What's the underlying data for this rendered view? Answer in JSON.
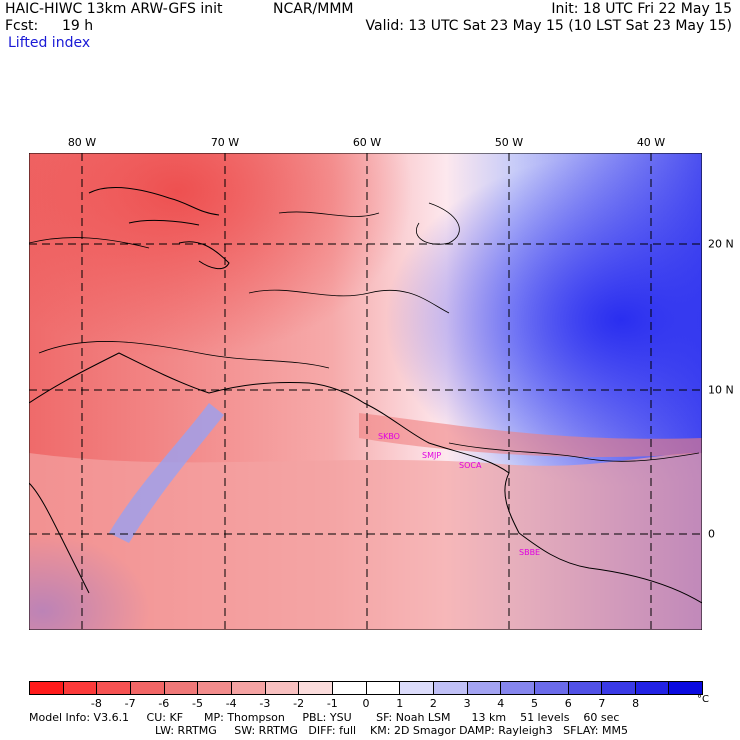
{
  "header": {
    "model": "HAIC-HIWC 13km ARW-GFS init",
    "org": "NCAR/MMM",
    "init": "Init: 18 UTC Fri 22 May 15",
    "fcst_label": "Fcst:",
    "fcst_value": "19 h",
    "valid": "Valid: 13 UTC Sat 23 May 15 (10 LST Sat 23 May 15)",
    "field": "Lifted index"
  },
  "map": {
    "lon_labels": [
      "80 W",
      "70 W",
      "60 W",
      "50 W",
      "40 W"
    ],
    "lat_labels": [
      "20 N",
      "10 N",
      "0"
    ],
    "stations": [
      "SKBO",
      "SMJP",
      "SOCA",
      "SBBE"
    ],
    "colors": {
      "strong_stable": "#3034ee",
      "neutral": "#ffffff",
      "unstable": "#ef6060"
    }
  },
  "colorbar": {
    "ticks": [
      "-8",
      "-7",
      "-6",
      "-5",
      "-4",
      "-3",
      "-2",
      "-1",
      "0",
      "1",
      "2",
      "3",
      "4",
      "5",
      "6",
      "7",
      "8"
    ],
    "unit": "°C",
    "colors": [
      "#ff1b1b",
      "#fc3a3a",
      "#f65252",
      "#f26666",
      "#ef7878",
      "#f28c8c",
      "#f5a3a3",
      "#f8c0c0",
      "#fbdcdc",
      "#ffffff",
      "#ffffff",
      "#dcdcfb",
      "#c0c0f6",
      "#a3a3f2",
      "#8686ee",
      "#6b6bea",
      "#5151e6",
      "#3a3ae6",
      "#2222e4",
      "#0a0ae0"
    ]
  },
  "footer": {
    "line1": "Model Info: V3.6.1     CU: KF      MP: Thompson     PBL: YSU       SF: Noah LSM      13 km    51 levels    60 sec",
    "line2": "LW: RRTMG     SW: RRTMG   DIFF: full    KM: 2D Smagor DAMP: Rayleigh3   SFLAY: MM5"
  }
}
